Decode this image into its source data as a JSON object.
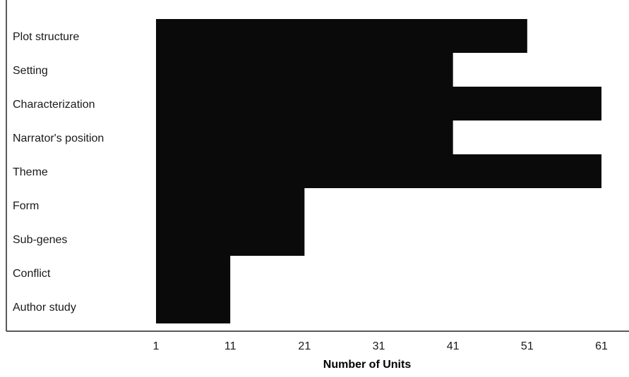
{
  "chart_data": {
    "type": "bar",
    "orientation": "horizontal",
    "categories": [
      "Plot structure",
      "Setting",
      "Characterization",
      "Narrator's position",
      "Theme",
      "Form",
      "Sub-genes",
      "Conflict",
      "Author study"
    ],
    "values": [
      51,
      41,
      61,
      41,
      61,
      21,
      21,
      11,
      11
    ],
    "baseline": 1,
    "xlim": [
      1,
      61
    ],
    "xticks": [
      "1",
      "11",
      "21",
      "31",
      "41",
      "51",
      "61"
    ],
    "xlabel": "Number of Units",
    "ylabel": "",
    "title": "",
    "grid": false,
    "legend": false,
    "colors": {
      "bar": "#0a0a0a",
      "frame": "#222222",
      "text": "#1a1a1a",
      "background": "#ffffff"
    }
  }
}
